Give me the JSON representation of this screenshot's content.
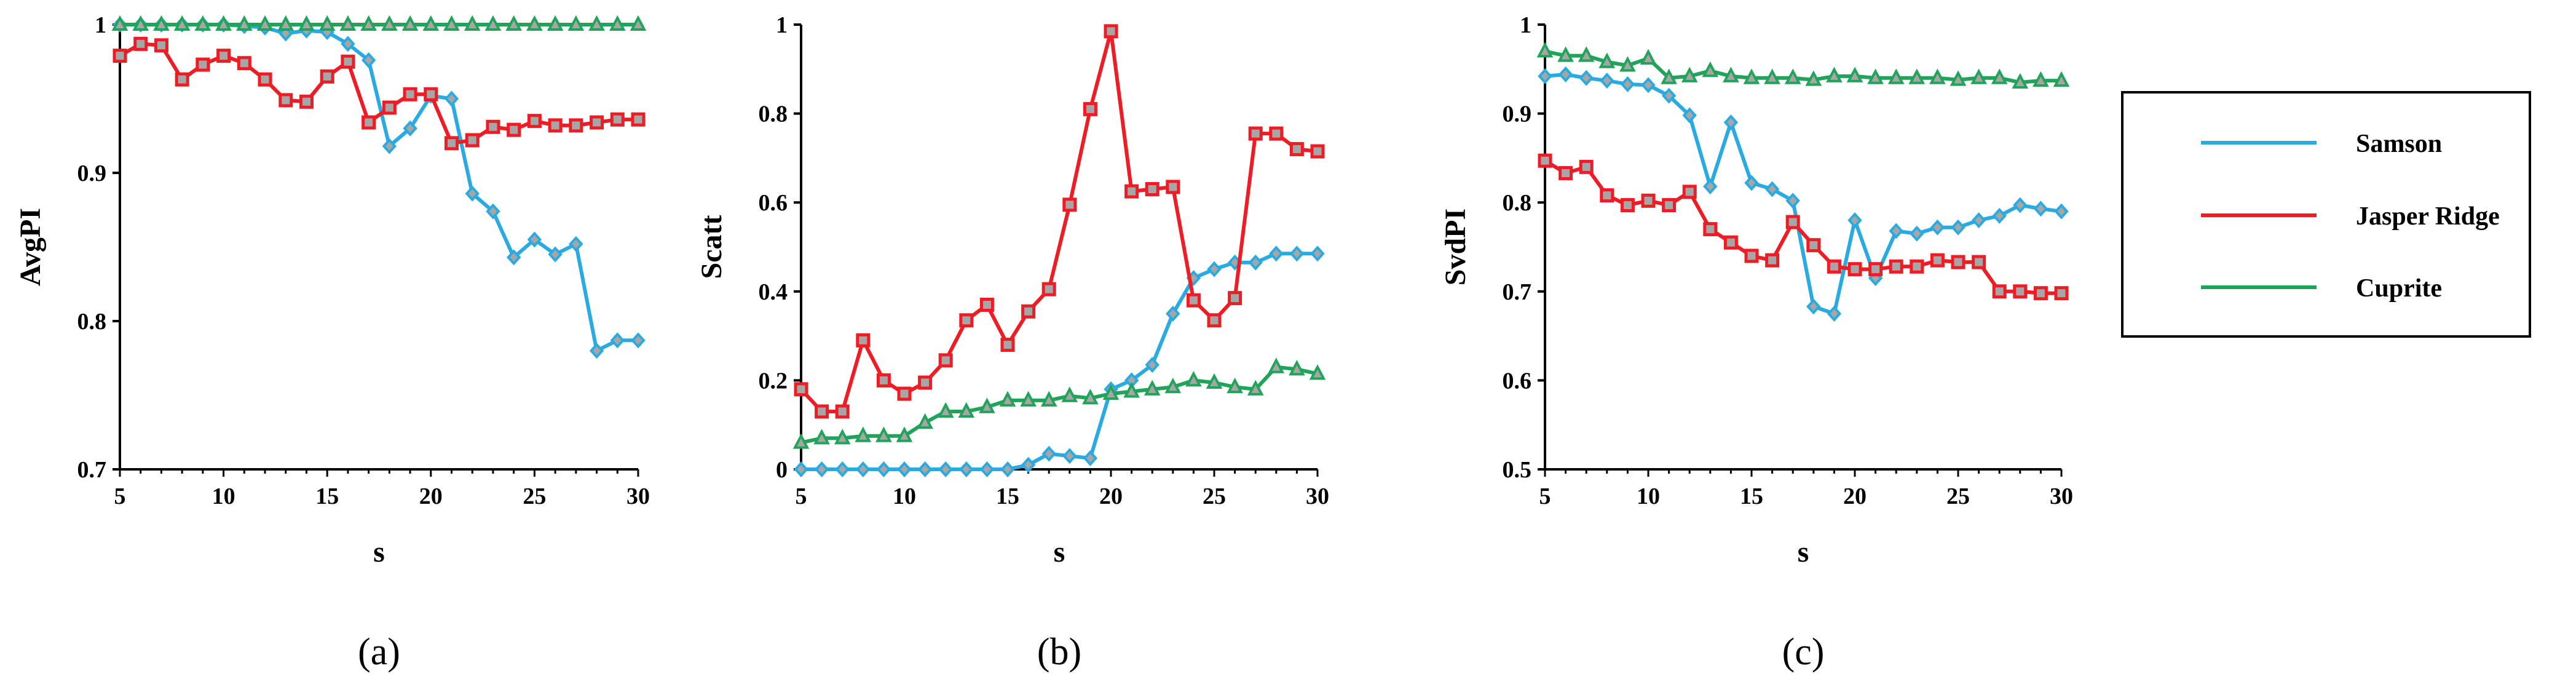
{
  "colors": {
    "Samson": "#29ABE2",
    "Jasper Ridge": "#EE1C25",
    "Cuprite": "#21A45A"
  },
  "legend": {
    "entries": [
      "Samson",
      "Jasper Ridge",
      "Cuprite"
    ]
  },
  "chart_data": [
    {
      "type": "line",
      "panel_label": "(a)",
      "xlabel": "s",
      "ylabel": "AvgPI",
      "xlim": [
        5,
        30
      ],
      "ylim": [
        0.7,
        1
      ],
      "xticks": [
        5,
        10,
        15,
        20,
        25,
        30
      ],
      "yticks": [
        0.7,
        0.8,
        0.9,
        1
      ],
      "ytick_labels": [
        "0.7",
        "0.8",
        "0.9",
        "1"
      ],
      "x": [
        5,
        6,
        7,
        8,
        9,
        10,
        11,
        12,
        13,
        14,
        15,
        16,
        17,
        18,
        19,
        20,
        21,
        22,
        23,
        24,
        25,
        26,
        27,
        28,
        29,
        30
      ],
      "series": [
        {
          "name": "Samson",
          "marker": "diamond",
          "values": [
            1,
            1,
            1,
            1,
            1,
            1,
            0.999,
            0.998,
            0.994,
            0.996,
            0.995,
            0.987,
            0.976,
            0.918,
            0.93,
            0.952,
            0.95,
            0.886,
            0.874,
            0.843,
            0.855,
            0.845,
            0.852,
            0.78,
            0.787,
            0.787
          ]
        },
        {
          "name": "Jasper Ridge",
          "marker": "square",
          "values": [
            0.979,
            0.987,
            0.986,
            0.963,
            0.973,
            0.979,
            0.974,
            0.963,
            0.949,
            0.948,
            0.965,
            0.975,
            0.934,
            0.944,
            0.953,
            0.953,
            0.92,
            0.922,
            0.931,
            0.929,
            0.935,
            0.932,
            0.932,
            0.934,
            0.936,
            0.936
          ]
        },
        {
          "name": "Cuprite",
          "marker": "triangle",
          "values": [
            1,
            1,
            1,
            1,
            1,
            1,
            1,
            1,
            1,
            1,
            1,
            1,
            1,
            1,
            1,
            1,
            1,
            1,
            1,
            1,
            1,
            1,
            1,
            1,
            1,
            1
          ]
        }
      ]
    },
    {
      "type": "line",
      "panel_label": "(b)",
      "xlabel": "s",
      "ylabel": "Scatt",
      "xlim": [
        5,
        30
      ],
      "ylim": [
        0,
        1
      ],
      "xticks": [
        5,
        10,
        15,
        20,
        25,
        30
      ],
      "yticks": [
        0,
        0.2,
        0.4,
        0.6,
        0.8,
        1
      ],
      "ytick_labels": [
        "0",
        "0.2",
        "0.4",
        "0.6",
        "0.8",
        "1"
      ],
      "x": [
        5,
        6,
        7,
        8,
        9,
        10,
        11,
        12,
        13,
        14,
        15,
        16,
        17,
        18,
        19,
        20,
        21,
        22,
        23,
        24,
        25,
        26,
        27,
        28,
        29,
        30
      ],
      "series": [
        {
          "name": "Samson",
          "marker": "diamond",
          "values": [
            0,
            0,
            0,
            0,
            0,
            0,
            0,
            0,
            0,
            0,
            0,
            0.01,
            0.035,
            0.03,
            0.025,
            0.18,
            0.2,
            0.235,
            0.35,
            0.43,
            0.45,
            0.465,
            0.465,
            0.485,
            0.485,
            0.485
          ]
        },
        {
          "name": "Jasper Ridge",
          "marker": "square",
          "values": [
            0.18,
            0.13,
            0.13,
            0.29,
            0.2,
            0.17,
            0.195,
            0.245,
            0.335,
            0.37,
            0.28,
            0.355,
            0.405,
            0.595,
            0.81,
            0.985,
            0.625,
            0.63,
            0.635,
            0.38,
            0.335,
            0.385,
            0.755,
            0.755,
            0.72,
            0.715
          ]
        },
        {
          "name": "Cuprite",
          "marker": "triangle",
          "values": [
            0.06,
            0.07,
            0.07,
            0.075,
            0.075,
            0.075,
            0.105,
            0.13,
            0.13,
            0.14,
            0.155,
            0.155,
            0.155,
            0.165,
            0.16,
            0.17,
            0.175,
            0.18,
            0.185,
            0.2,
            0.195,
            0.185,
            0.18,
            0.23,
            0.225,
            0.215
          ]
        }
      ]
    },
    {
      "type": "line",
      "panel_label": "(c)",
      "xlabel": "s",
      "ylabel": "SvdPI",
      "xlim": [
        5,
        30
      ],
      "ylim": [
        0.5,
        1
      ],
      "xticks": [
        5,
        10,
        15,
        20,
        25,
        30
      ],
      "yticks": [
        0.5,
        0.6,
        0.7,
        0.8,
        0.9,
        1
      ],
      "ytick_labels": [
        "0.5",
        "0.6",
        "0.7",
        "0.8",
        "0.9",
        "1"
      ],
      "x": [
        5,
        6,
        7,
        8,
        9,
        10,
        11,
        12,
        13,
        14,
        15,
        16,
        17,
        18,
        19,
        20,
        21,
        22,
        23,
        24,
        25,
        26,
        27,
        28,
        29,
        30
      ],
      "series": [
        {
          "name": "Samson",
          "marker": "diamond",
          "values": [
            0.942,
            0.944,
            0.94,
            0.937,
            0.933,
            0.932,
            0.92,
            0.898,
            0.818,
            0.89,
            0.822,
            0.815,
            0.802,
            0.683,
            0.675,
            0.78,
            0.715,
            0.768,
            0.765,
            0.772,
            0.772,
            0.78,
            0.785,
            0.797,
            0.793,
            0.79
          ]
        },
        {
          "name": "Jasper Ridge",
          "marker": "square",
          "values": [
            0.847,
            0.833,
            0.84,
            0.808,
            0.797,
            0.802,
            0.797,
            0.812,
            0.77,
            0.755,
            0.74,
            0.735,
            0.778,
            0.752,
            0.728,
            0.725,
            0.725,
            0.728,
            0.728,
            0.735,
            0.733,
            0.733,
            0.7,
            0.7,
            0.698,
            0.698
          ]
        },
        {
          "name": "Cuprite",
          "marker": "triangle",
          "values": [
            0.97,
            0.965,
            0.965,
            0.958,
            0.954,
            0.962,
            0.94,
            0.942,
            0.948,
            0.942,
            0.94,
            0.94,
            0.94,
            0.938,
            0.942,
            0.942,
            0.94,
            0.94,
            0.94,
            0.94,
            0.938,
            0.94,
            0.94,
            0.935,
            0.937,
            0.937
          ]
        }
      ]
    }
  ]
}
